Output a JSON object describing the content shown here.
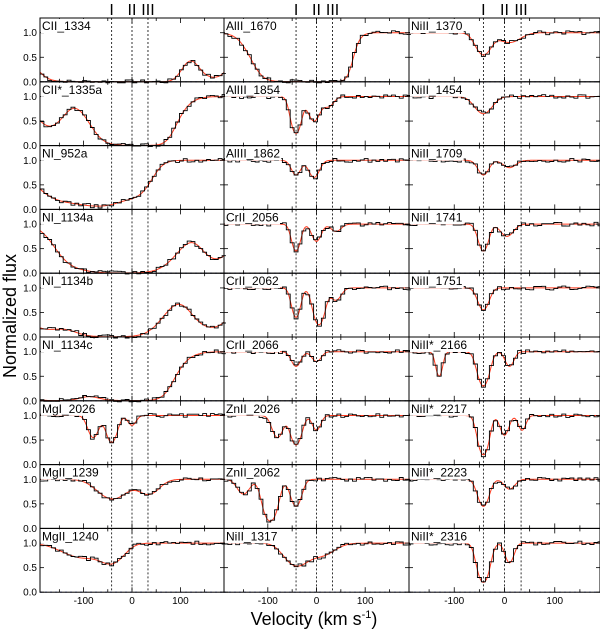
{
  "chart_data": {
    "type": "line",
    "xlabel": "Velocity (km s",
    "xlabel_sup": "-1",
    "xlabel_close": ")",
    "ylabel": "Normalized flux",
    "xlim": [
      -190,
      190
    ],
    "ylim": [
      0,
      1.3
    ],
    "x_ticks": [
      -100,
      0,
      100
    ],
    "x_tick_labels": [
      "-100",
      "0",
      "100"
    ],
    "y_ticks": [
      0.0,
      0.5,
      1.0
    ],
    "y_tick_labels": [
      "0.0",
      "0.5",
      "1.0"
    ],
    "components": [
      {
        "label": "I",
        "velocity": -42
      },
      {
        "label": "II",
        "velocity": 0
      },
      {
        "label": "III",
        "velocity": 33
      }
    ],
    "series_colors": {
      "data": "#000000",
      "model": "#ff3b1f",
      "zero": "#3344cc"
    },
    "panels": [
      {
        "label": "CII_1334",
        "col": 0,
        "row": 0,
        "lines": [
          {
            "v": -115,
            "depth": 1.0,
            "width": 48
          },
          {
            "v": -10,
            "depth": 1.0,
            "width": 60
          },
          {
            "v": 40,
            "depth": 1.0,
            "width": 28
          },
          {
            "v": 170,
            "depth": 0.9,
            "width": 24
          }
        ]
      },
      {
        "label": "CII*_1335a",
        "col": 0,
        "row": 1,
        "lines": [
          {
            "v": -170,
            "depth": 0.6,
            "width": 25
          },
          {
            "v": 0,
            "depth": 1.0,
            "width": 45
          },
          {
            "v": 40,
            "depth": 0.8,
            "width": 25
          }
        ]
      },
      {
        "label": "NI_952a",
        "col": 0,
        "row": 2,
        "lines": [
          {
            "v": -140,
            "depth": 0.8,
            "width": 45
          },
          {
            "v": -60,
            "depth": 0.9,
            "width": 38
          },
          {
            "v": 10,
            "depth": 0.6,
            "width": 25
          }
        ]
      },
      {
        "label": "NI_1134a",
        "col": 0,
        "row": 3,
        "lines": [
          {
            "v": -120,
            "depth": 0.5,
            "width": 30
          },
          {
            "v": -20,
            "depth": 1.0,
            "width": 60
          },
          {
            "v": 175,
            "depth": 0.7,
            "width": 26
          }
        ]
      },
      {
        "label": "NI_1134b",
        "col": 0,
        "row": 4,
        "lines": [
          {
            "v": -180,
            "depth": 0.8,
            "width": 35
          },
          {
            "v": -40,
            "depth": 1.0,
            "width": 55
          },
          {
            "v": 165,
            "depth": 0.8,
            "width": 32
          }
        ]
      },
      {
        "label": "NI_1134c",
        "col": 0,
        "row": 5,
        "lines": [
          {
            "v": -160,
            "depth": 1.0,
            "width": 40
          },
          {
            "v": -10,
            "depth": 1.0,
            "width": 48
          },
          {
            "v": 35,
            "depth": 0.7,
            "width": 25
          }
        ]
      },
      {
        "label": "MgI_2026",
        "col": 0,
        "row": 6,
        "lines": [
          {
            "v": -80,
            "depth": 0.45,
            "width": 10
          },
          {
            "v": -42,
            "depth": 0.55,
            "width": 10
          },
          {
            "v": 0,
            "depth": 0.2,
            "width": 8
          }
        ]
      },
      {
        "label": "MgII_1239",
        "col": 0,
        "row": 7,
        "lines": [
          {
            "v": -40,
            "depth": 0.4,
            "width": 28
          },
          {
            "v": 35,
            "depth": 0.3,
            "width": 20
          }
        ]
      },
      {
        "label": "MgII_1240",
        "col": 0,
        "row": 8,
        "lines": [
          {
            "v": -100,
            "depth": 0.3,
            "width": 40
          },
          {
            "v": -40,
            "depth": 0.35,
            "width": 22
          }
        ]
      },
      {
        "label": "AlII_1670",
        "col": 1,
        "row": 0,
        "lines": [
          {
            "v": -60,
            "depth": 1.0,
            "width": 38
          },
          {
            "v": 10,
            "depth": 1.0,
            "width": 28
          },
          {
            "v": 45,
            "depth": 0.9,
            "width": 16
          }
        ]
      },
      {
        "label": "AlIII_1854",
        "col": 1,
        "row": 1,
        "lines": [
          {
            "v": -42,
            "depth": 0.75,
            "width": 9
          },
          {
            "v": -5,
            "depth": 0.5,
            "width": 11
          },
          {
            "v": 25,
            "depth": 0.2,
            "width": 10
          }
        ]
      },
      {
        "label": "AlIII_1862",
        "col": 1,
        "row": 2,
        "lines": [
          {
            "v": -42,
            "depth": 0.3,
            "width": 9
          },
          {
            "v": -5,
            "depth": 0.35,
            "width": 10
          }
        ]
      },
      {
        "label": "CrII_2056",
        "col": 1,
        "row": 3,
        "lines": [
          {
            "v": -42,
            "depth": 0.55,
            "width": 8
          },
          {
            "v": 0,
            "depth": 0.35,
            "width": 9
          },
          {
            "v": 40,
            "depth": 0.15,
            "width": 10
          }
        ]
      },
      {
        "label": "CrII_2062",
        "col": 1,
        "row": 4,
        "lines": [
          {
            "v": -42,
            "depth": 0.6,
            "width": 8
          },
          {
            "v": 5,
            "depth": 0.75,
            "width": 10
          },
          {
            "v": 40,
            "depth": 0.25,
            "width": 10
          }
        ]
      },
      {
        "label": "CrII_2066",
        "col": 1,
        "row": 5,
        "lines": [
          {
            "v": -42,
            "depth": 0.3,
            "width": 9
          },
          {
            "v": 0,
            "depth": 0.2,
            "width": 9
          }
        ]
      },
      {
        "label": "ZnII_2026",
        "col": 1,
        "row": 6,
        "lines": [
          {
            "v": -80,
            "depth": 0.45,
            "width": 10
          },
          {
            "v": -42,
            "depth": 0.6,
            "width": 10
          },
          {
            "v": 0,
            "depth": 0.3,
            "width": 8
          }
        ]
      },
      {
        "label": "ZnII_2062",
        "col": 1,
        "row": 7,
        "lines": [
          {
            "v": -150,
            "depth": 0.3,
            "width": 12
          },
          {
            "v": -95,
            "depth": 0.85,
            "width": 12
          },
          {
            "v": -42,
            "depth": 0.55,
            "width": 10
          }
        ]
      },
      {
        "label": "NiII_1317",
        "col": 1,
        "row": 8,
        "lines": [
          {
            "v": -42,
            "depth": 0.45,
            "width": 22
          },
          {
            "v": 10,
            "depth": 0.25,
            "width": 25
          }
        ]
      },
      {
        "label": "NiII_1370",
        "col": 2,
        "row": 0,
        "lines": [
          {
            "v": -42,
            "depth": 0.45,
            "width": 14
          },
          {
            "v": 10,
            "depth": 0.2,
            "width": 20
          }
        ]
      },
      {
        "label": "NiII_1454",
        "col": 2,
        "row": 1,
        "lines": [
          {
            "v": -42,
            "depth": 0.35,
            "width": 16
          }
        ]
      },
      {
        "label": "NiII_1709",
        "col": 2,
        "row": 2,
        "lines": [
          {
            "v": -42,
            "depth": 0.3,
            "width": 10
          },
          {
            "v": 10,
            "depth": 0.15,
            "width": 12
          }
        ]
      },
      {
        "label": "NiII_1741",
        "col": 2,
        "row": 3,
        "lines": [
          {
            "v": -42,
            "depth": 0.55,
            "width": 9
          },
          {
            "v": 5,
            "depth": 0.25,
            "width": 12
          }
        ]
      },
      {
        "label": "NiII_1751",
        "col": 2,
        "row": 4,
        "lines": [
          {
            "v": -42,
            "depth": 0.45,
            "width": 10
          }
        ]
      },
      {
        "label": "NiII*_2166",
        "col": 2,
        "row": 5,
        "lines": [
          {
            "v": -130,
            "depth": 0.5,
            "width": 6
          },
          {
            "v": -42,
            "depth": 0.7,
            "width": 10
          },
          {
            "v": 10,
            "depth": 0.3,
            "width": 8
          }
        ]
      },
      {
        "label": "NiII*_2217",
        "col": 2,
        "row": 6,
        "lines": [
          {
            "v": -42,
            "depth": 0.8,
            "width": 9
          },
          {
            "v": 0,
            "depth": 0.4,
            "width": 8
          },
          {
            "v": 35,
            "depth": 0.3,
            "width": 7
          }
        ]
      },
      {
        "label": "NiII*_2223",
        "col": 2,
        "row": 7,
        "lines": [
          {
            "v": -42,
            "depth": 0.55,
            "width": 10
          },
          {
            "v": 10,
            "depth": 0.2,
            "width": 10
          }
        ]
      },
      {
        "label": "NiII*_2316",
        "col": 2,
        "row": 8,
        "lines": [
          {
            "v": -42,
            "depth": 0.8,
            "width": 10
          },
          {
            "v": 10,
            "depth": 0.4,
            "width": 8
          }
        ]
      }
    ]
  }
}
